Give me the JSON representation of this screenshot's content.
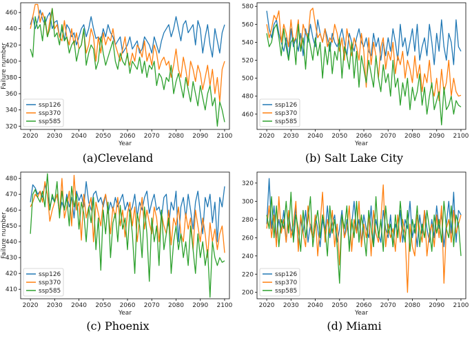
{
  "colors": {
    "ssp126": "#1f77b4",
    "ssp370": "#ff7f0e",
    "ssp585": "#2ca02c"
  },
  "chart_data": [
    {
      "type": "line",
      "caption": "(a)Cleveland",
      "xlabel": "Year",
      "ylabel": "Failure number",
      "xlim": [
        2016,
        2102
      ],
      "ylim": [
        316,
        472
      ],
      "xticks": [
        2020,
        2030,
        2040,
        2050,
        2060,
        2070,
        2080,
        2090,
        2100
      ],
      "yticks": [
        320,
        340,
        360,
        380,
        400,
        420,
        440,
        460
      ],
      "legend": "lower-left",
      "x_start": 2020,
      "series": [
        {
          "name": "ssp126",
          "values": [
            445,
            455,
            440,
            450,
            463,
            452,
            445,
            455,
            460,
            440,
            448,
            450,
            430,
            440,
            425,
            445,
            440,
            430,
            435,
            420,
            430,
            440,
            445,
            430,
            440,
            455,
            440,
            428,
            430,
            425,
            440,
            430,
            445,
            435,
            430,
            420,
            425,
            430,
            410,
            415,
            420,
            430,
            415,
            420,
            425,
            410,
            415,
            430,
            425,
            420,
            410,
            430,
            420,
            410,
            425,
            435,
            440,
            445,
            430,
            440,
            455,
            440,
            425,
            445,
            450,
            435,
            440,
            445,
            420,
            450,
            440,
            410,
            430,
            445,
            420,
            405,
            440,
            425,
            410,
            435,
            445
          ]
        },
        {
          "name": "ssp370",
          "values": [
            440,
            455,
            470,
            470,
            448,
            460,
            450,
            430,
            450,
            465,
            440,
            445,
            430,
            425,
            450,
            430,
            420,
            440,
            420,
            435,
            415,
            420,
            438,
            410,
            420,
            440,
            430,
            400,
            430,
            410,
            435,
            420,
            430,
            425,
            440,
            420,
            410,
            400,
            415,
            430,
            405,
            395,
            410,
            400,
            420,
            415,
            405,
            425,
            400,
            410,
            395,
            420,
            410,
            390,
            400,
            405,
            395,
            400,
            380,
            395,
            415,
            390,
            380,
            405,
            390,
            370,
            400,
            390,
            375,
            395,
            385,
            365,
            380,
            395,
            370,
            390,
            360,
            380,
            350,
            390,
            400
          ]
        },
        {
          "name": "ssp585",
          "values": [
            415,
            405,
            455,
            440,
            445,
            425,
            455,
            430,
            440,
            465,
            430,
            435,
            420,
            445,
            425,
            430,
            410,
            420,
            425,
            400,
            415,
            420,
            440,
            395,
            410,
            420,
            415,
            390,
            400,
            430,
            410,
            395,
            405,
            415,
            425,
            400,
            390,
            410,
            400,
            395,
            410,
            385,
            400,
            395,
            390,
            405,
            385,
            400,
            380,
            395,
            390,
            400,
            370,
            385,
            380,
            365,
            380,
            375,
            395,
            360,
            375,
            385,
            370,
            355,
            380,
            365,
            350,
            375,
            360,
            345,
            370,
            355,
            340,
            360,
            370,
            345,
            355,
            320,
            350,
            340,
            325
          ]
        }
      ]
    },
    {
      "type": "line",
      "caption": "(b) Salt Lake City",
      "xlabel": "Year",
      "ylabel": "",
      "xlim": [
        2016,
        2102
      ],
      "ylim": [
        443,
        584
      ],
      "xticks": [
        2020,
        2030,
        2040,
        2050,
        2060,
        2070,
        2080,
        2090,
        2100
      ],
      "yticks": [
        460,
        480,
        500,
        520,
        540,
        560,
        580
      ],
      "legend": "lower-left",
      "x_start": 2020,
      "series": [
        {
          "name": "ssp126",
          "values": [
            575,
            555,
            545,
            560,
            565,
            550,
            540,
            530,
            545,
            520,
            555,
            535,
            545,
            530,
            550,
            525,
            555,
            540,
            560,
            545,
            535,
            565,
            550,
            540,
            555,
            545,
            530,
            550,
            540,
            535,
            545,
            555,
            540,
            525,
            550,
            540,
            530,
            545,
            555,
            540,
            535,
            545,
            530,
            525,
            550,
            535,
            545,
            520,
            540,
            525,
            545,
            530,
            555,
            540,
            520,
            560,
            535,
            545,
            525,
            540,
            555,
            530,
            560,
            520,
            535,
            545,
            525,
            560,
            540,
            515,
            550,
            530,
            565,
            535,
            520,
            550,
            540,
            515,
            565,
            535,
            530
          ]
        },
        {
          "name": "ssp370",
          "values": [
            560,
            545,
            555,
            570,
            565,
            575,
            540,
            560,
            550,
            535,
            565,
            540,
            545,
            565,
            530,
            560,
            550,
            545,
            575,
            578,
            560,
            545,
            550,
            540,
            555,
            535,
            545,
            540,
            560,
            550,
            530,
            545,
            520,
            555,
            540,
            525,
            545,
            535,
            520,
            550,
            530,
            490,
            545,
            515,
            540,
            525,
            500,
            535,
            545,
            510,
            530,
            520,
            540,
            505,
            525,
            515,
            530,
            500,
            520,
            510,
            495,
            525,
            500,
            515,
            485,
            505,
            495,
            520,
            490,
            480,
            500,
            475,
            510,
            485,
            495,
            520,
            480,
            500,
            485,
            480,
            481
          ]
        },
        {
          "name": "ssp585",
          "values": [
            550,
            535,
            540,
            555,
            560,
            545,
            525,
            555,
            535,
            520,
            540,
            545,
            515,
            560,
            530,
            545,
            510,
            550,
            535,
            520,
            545,
            525,
            540,
            500,
            535,
            515,
            540,
            505,
            530,
            520,
            545,
            500,
            535,
            525,
            510,
            540,
            500,
            530,
            490,
            525,
            510,
            495,
            520,
            505,
            490,
            525,
            500,
            485,
            515,
            495,
            505,
            480,
            520,
            490,
            500,
            470,
            495,
            480,
            500,
            465,
            490,
            475,
            485,
            505,
            470,
            490,
            460,
            480,
            495,
            465,
            475,
            485,
            448,
            490,
            465,
            470,
            480,
            460,
            475,
            470,
            468
          ]
        }
      ]
    },
    {
      "type": "line",
      "caption": "(c) Phoenix",
      "xlabel": "Year",
      "ylabel": "Failure number",
      "xlim": [
        2016,
        2102
      ],
      "ylim": [
        404,
        484
      ],
      "xticks": [
        2020,
        2030,
        2040,
        2050,
        2060,
        2070,
        2080,
        2090,
        2100
      ],
      "yticks": [
        410,
        420,
        430,
        440,
        450,
        460,
        470,
        480
      ],
      "legend": "lower-left",
      "x_start": 2020,
      "series": [
        {
          "name": "ssp126",
          "values": [
            465,
            476,
            474,
            470,
            472,
            468,
            476,
            470,
            462,
            468,
            465,
            470,
            458,
            465,
            460,
            470,
            462,
            468,
            455,
            472,
            466,
            470,
            462,
            478,
            465,
            460,
            470,
            472,
            465,
            468,
            462,
            470,
            458,
            465,
            460,
            468,
            462,
            466,
            470,
            460,
            465,
            458,
            462,
            470,
            456,
            465,
            460,
            468,
            472,
            458,
            465,
            470,
            460,
            462,
            455,
            468,
            470,
            450,
            465,
            460,
            472,
            440,
            462,
            468,
            455,
            470,
            460,
            448,
            465,
            472,
            458,
            445,
            468,
            462,
            470,
            452,
            465,
            440,
            468,
            462,
            475
          ]
        },
        {
          "name": "ssp370",
          "values": [
            462,
            465,
            470,
            468,
            472,
            465,
            478,
            470,
            453,
            460,
            465,
            470,
            458,
            480,
            455,
            462,
            472,
            450,
            482,
            460,
            465,
            441,
            470,
            455,
            462,
            468,
            440,
            465,
            458,
            450,
            465,
            470,
            460,
            445,
            462,
            455,
            468,
            450,
            460,
            443,
            458,
            465,
            450,
            462,
            440,
            455,
            468,
            448,
            460,
            452,
            445,
            462,
            455,
            440,
            458,
            450,
            445,
            460,
            438,
            455,
            450,
            462,
            445,
            440,
            458,
            448,
            455,
            435,
            460,
            450,
            440,
            455,
            445,
            430,
            452,
            440,
            448,
            435,
            445,
            450,
            433
          ]
        },
        {
          "name": "ssp585",
          "values": [
            445,
            470,
            473,
            468,
            465,
            472,
            462,
            483,
            460,
            470,
            465,
            478,
            455,
            472,
            460,
            468,
            450,
            475,
            462,
            470,
            448,
            465,
            458,
            440,
            462,
            452,
            468,
            435,
            455,
            422,
            460,
            445,
            465,
            430,
            452,
            458,
            440,
            463,
            448,
            455,
            435,
            460,
            445,
            420,
            458,
            450,
            430,
            462,
            445,
            415,
            455,
            440,
            450,
            425,
            460,
            435,
            445,
            455,
            420,
            440,
            450,
            435,
            445,
            430,
            440,
            425,
            450,
            435,
            420,
            445,
            430,
            440,
            425,
            435,
            405,
            440,
            430,
            425,
            430,
            427,
            428
          ]
        }
      ]
    },
    {
      "type": "line",
      "caption": "(d) Miami",
      "xlabel": "Year",
      "ylabel": "",
      "xlim": [
        2016,
        2102
      ],
      "ylim": [
        193,
        332
      ],
      "xticks": [
        2020,
        2030,
        2040,
        2050,
        2060,
        2070,
        2080,
        2090,
        2100
      ],
      "yticks": [
        200,
        220,
        240,
        260,
        280,
        300,
        320
      ],
      "legend": "lower-left",
      "x_start": 2020,
      "series": [
        {
          "name": "ssp126",
          "values": [
            275,
            325,
            270,
            295,
            260,
            280,
            265,
            290,
            255,
            285,
            270,
            260,
            295,
            250,
            280,
            265,
            290,
            255,
            275,
            260,
            285,
            270,
            250,
            280,
            265,
            295,
            260,
            275,
            285,
            255,
            270,
            290,
            260,
            280,
            250,
            275,
            300,
            265,
            280,
            255,
            285,
            270,
            260,
            295,
            250,
            280,
            265,
            255,
            290,
            270,
            260,
            285,
            250,
            275,
            265,
            290,
            255,
            280,
            270,
            300,
            260,
            275,
            250,
            285,
            265,
            290,
            270,
            255,
            280,
            260,
            295,
            270,
            285,
            250,
            275,
            300,
            265,
            310,
            255,
            290,
            285
          ]
        },
        {
          "name": "ssp370",
          "values": [
            270,
            295,
            260,
            285,
            250,
            305,
            265,
            280,
            255,
            290,
            260,
            275,
            300,
            245,
            285,
            265,
            250,
            295,
            270,
            260,
            285,
            240,
            275,
            310,
            255,
            280,
            265,
            290,
            250,
            275,
            230,
            285,
            260,
            270,
            295,
            245,
            280,
            265,
            300,
            250,
            275,
            260,
            285,
            240,
            290,
            265,
            255,
            280,
            318,
            250,
            275,
            260,
            270,
            245,
            285,
            255,
            280,
            265,
            200,
            275,
            250,
            240,
            285,
            270,
            255,
            290,
            240,
            265,
            275,
            250,
            285,
            260,
            295,
            210,
            270,
            280,
            255,
            290,
            265,
            275,
            285
          ]
        },
        {
          "name": "ssp585",
          "values": [
            285,
            270,
            305,
            260,
            295,
            250,
            280,
            270,
            300,
            265,
            310,
            255,
            285,
            270,
            245,
            290,
            260,
            280,
            305,
            250,
            275,
            290,
            260,
            285,
            270,
            240,
            295,
            265,
            280,
            250,
            210,
            285,
            270,
            295,
            245,
            280,
            260,
            300,
            255,
            285,
            265,
            240,
            290,
            270,
            250,
            305,
            260,
            280,
            245,
            295,
            265,
            275,
            250,
            285,
            260,
            300,
            270,
            255,
            290,
            245,
            280,
            265,
            295,
            250,
            275,
            260,
            290,
            270,
            245,
            285,
            265,
            280,
            255,
            300,
            270,
            260,
            295,
            250,
            285,
            275,
            240
          ]
        }
      ]
    }
  ]
}
